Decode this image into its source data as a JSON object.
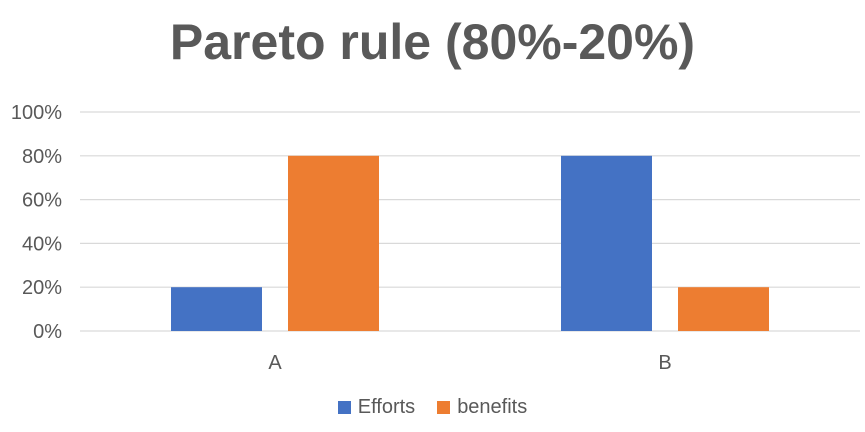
{
  "chart_data": {
    "type": "bar",
    "title": "Pareto rule (80%-20%)",
    "categories": [
      "A",
      "B"
    ],
    "series": [
      {
        "name": "Efforts",
        "values": [
          20,
          80
        ],
        "color": "#4472C4"
      },
      {
        "name": "benefits",
        "values": [
          80,
          20
        ],
        "color": "#ED7D31"
      }
    ],
    "ylim": [
      0,
      100
    ],
    "y_ticks": [
      "0%",
      "20%",
      "40%",
      "60%",
      "80%",
      "100%"
    ],
    "grid": true,
    "legend_position": "bottom",
    "xlabel": "",
    "ylabel": ""
  }
}
